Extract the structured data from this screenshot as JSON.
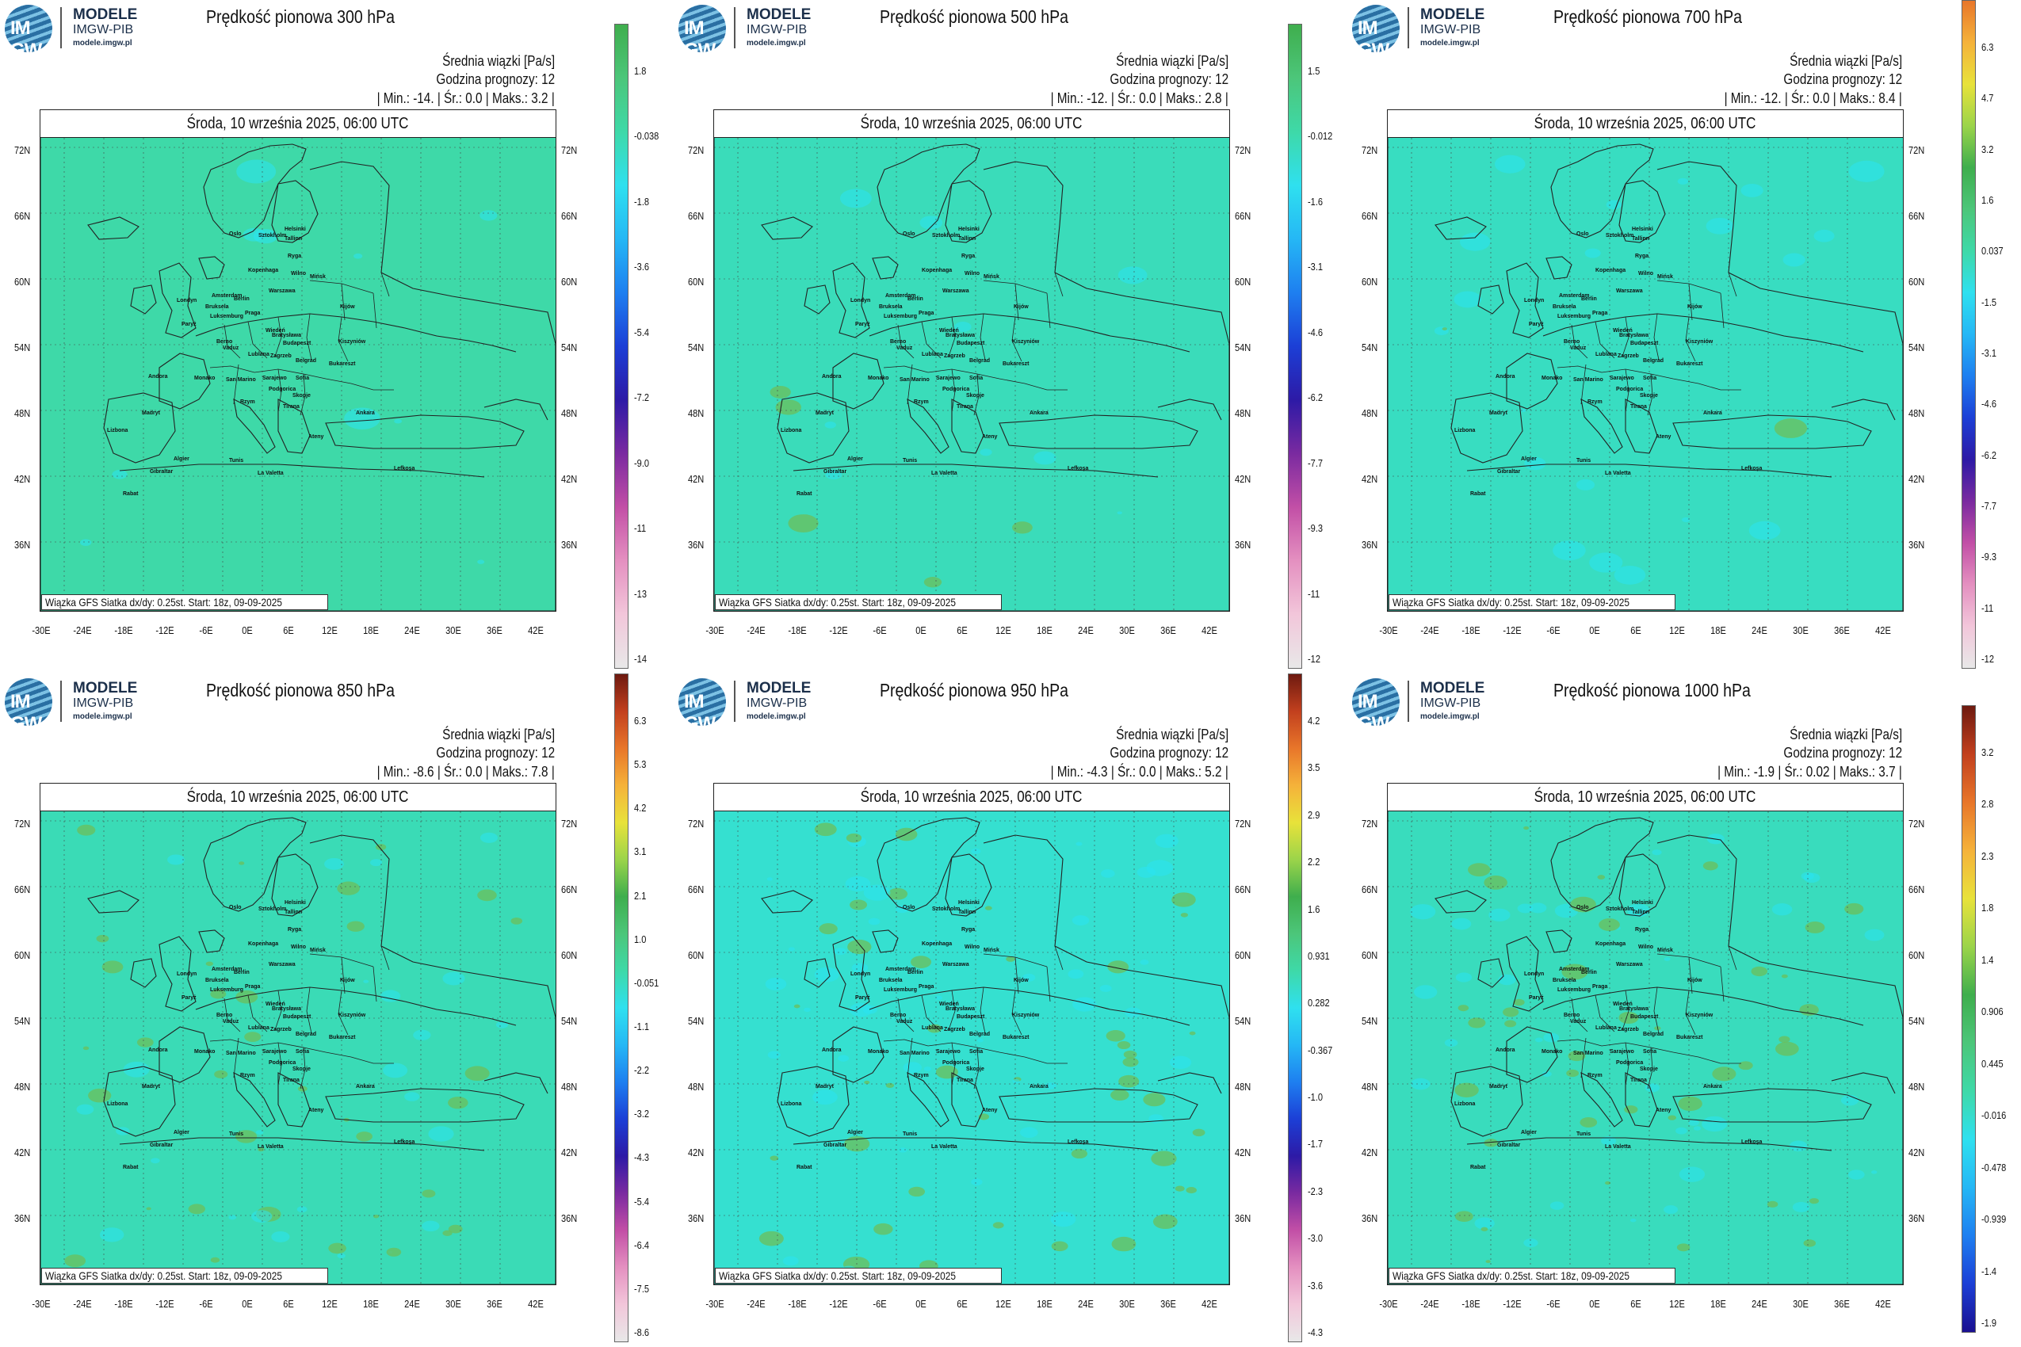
{
  "logo": {
    "badge": "IM GW",
    "line1": "MODELE",
    "line2": "IMGW-PIB",
    "line3": "modele.imgw.pl"
  },
  "colors": {
    "field_base": "#3ed9a8",
    "water_anomaly": "#2ee6f0",
    "updraft_green": "#5cb85c",
    "downdraft_blue": "#00bfff",
    "border": "#222222"
  },
  "panels": [
    {
      "title": "Prędkość pionowa 300 hPa",
      "info1": "Średnia wiązki [Pa/s]",
      "info2": "Godzina prognozy: 12",
      "stats": "| Min.:   -14. | Śr.:    0.0 | Maks.:    3.2 |",
      "date": "Środa, 10 września 2025, 06:00 UTC",
      "footer": "Wiązka GFS Siatka dx/dy: 0.25st. Start: 18z, 09-09-2025",
      "scale": [
        "1.8",
        "-0.038",
        "-1.8",
        "-3.6",
        "-5.4",
        "-7.2",
        "-9.0",
        "-11",
        "-13",
        "-14"
      ],
      "cbar_type": "A"
    },
    {
      "title": "Prędkość pionowa 500 hPa",
      "info1": "Średnia wiązki [Pa/s]",
      "info2": "Godzina prognozy: 12",
      "stats": "| Min.:   -12. | Śr.:    0.0 | Maks.:    2.8 |",
      "date": "Środa, 10 września 2025, 06:00 UTC",
      "footer": "Wiązka GFS Siatka dx/dy: 0.25st. Start: 18z, 09-09-2025",
      "scale": [
        "1.5",
        "-0.012",
        "-1.6",
        "-3.1",
        "-4.6",
        "-6.2",
        "-7.7",
        "-9.3",
        "-11",
        "-12"
      ],
      "cbar_type": "A"
    },
    {
      "title": "Prędkość pionowa 700 hPa",
      "info1": "Średnia wiązki [Pa/s]",
      "info2": "Godzina prognozy: 12",
      "stats": "| Min.:   -12. | Śr.:    0.0 | Maks.:    8.4 |",
      "date": "Środa, 10 września 2025, 06:00 UTC",
      "footer": "Wiązka GFS Siatka dx/dy: 0.25st. Start: 18z, 09-09-2025",
      "scale": [
        "6.3",
        "4.7",
        "3.2",
        "1.6",
        "0.037",
        "-1.5",
        "-3.1",
        "-4.6",
        "-6.2",
        "-7.7",
        "-9.3",
        "-11",
        "-12"
      ],
      "cbar_type": "B"
    },
    {
      "title": "Prędkość pionowa 850 hPa",
      "info1": "Średnia wiązki [Pa/s]",
      "info2": "Godzina prognozy: 12",
      "stats": "| Min.:   -8.6 | Śr.:    0.0 | Maks.:    7.8 |",
      "date": "Środa, 10 września 2025, 06:00 UTC",
      "footer": "Wiązka GFS Siatka dx/dy: 0.25st. Start: 18z, 09-09-2025",
      "scale": [
        "6.3",
        "5.3",
        "4.2",
        "3.1",
        "2.1",
        "1.0",
        "-0.051",
        "-1.1",
        "-2.2",
        "-3.2",
        "-4.3",
        "-5.4",
        "-6.4",
        "-7.5",
        "-8.6"
      ],
      "cbar_type": "C"
    },
    {
      "title": "Prędkość pionowa 950 hPa",
      "info1": "Średnia wiązki [Pa/s]",
      "info2": "Godzina prognozy: 12",
      "stats": "| Min.:   -4.3 | Śr.:    0.0 | Maks.:    5.2 |",
      "date": "Środa, 10 września 2025, 06:00 UTC",
      "footer": "Wiązka GFS Siatka dx/dy: 0.25st. Start: 18z, 09-09-2025",
      "scale": [
        "4.2",
        "3.5",
        "2.9",
        "2.2",
        "1.6",
        "0.931",
        "0.282",
        "-0.367",
        "-1.0",
        "-1.7",
        "-2.3",
        "-3.0",
        "-3.6",
        "-4.3"
      ],
      "cbar_type": "C"
    },
    {
      "title": "Prędkość pionowa 1000 hPa",
      "info1": "Średnia wiązki [Pa/s]",
      "info2": "Godzina prognozy: 12",
      "stats": "| Min.:   -1.9 | Śr.:   0.02 | Maks.:    3.7 |",
      "date": "Środa, 10 września 2025, 06:00 UTC",
      "footer": "Wiązka GFS Siatka dx/dy: 0.25st. Start: 18z, 09-09-2025",
      "scale": [
        "3.2",
        "2.8",
        "2.3",
        "1.8",
        "1.4",
        "0.906",
        "0.445",
        "-0.016",
        "-0.478",
        "-0.939",
        "-1.4",
        "-1.9"
      ],
      "cbar_type": "D"
    }
  ],
  "axes": {
    "lat_labels_left": [
      "72N",
      "66N",
      "60N",
      "54N",
      "48N",
      "42N",
      "36N"
    ],
    "lat_labels_right": [
      "72N",
      "66N",
      "60N",
      "54N",
      "48N",
      "42N",
      "36N"
    ],
    "lon_labels": [
      "-30E",
      "-24E",
      "-18E",
      "-12E",
      "-6E",
      "0E",
      "6E",
      "12E",
      "18E",
      "24E",
      "30E",
      "36E",
      "42E"
    ]
  },
  "cities": [
    "Helsinki",
    "Oslo",
    "Sztokholm",
    "Tallinn",
    "Ryga",
    "Kopenhaga",
    "Wilno",
    "Mińsk",
    "Amsterdam",
    "Berlin",
    "Warszawa",
    "Londyn",
    "Bruksela",
    "Luksemburg",
    "Praga",
    "Kijów",
    "Paryż",
    "Wiedeń",
    "Bratysława",
    "Berno",
    "Budapeszt",
    "Kiszyniów",
    "Vaduz",
    "Lublana",
    "Zagrzeb",
    "Belgrad",
    "Bukareszt",
    "Andora",
    "Monako",
    "San Marino",
    "Sarajewo",
    "Sofia",
    "Podgorica",
    "Skopje",
    "Rzym",
    "Tirana",
    "Madryt",
    "Ankara",
    "Lizbona",
    "Ateny",
    "Algier",
    "Tunis",
    "Gibraltar",
    "La Valetta",
    "Rabat",
    "Lefkoşa"
  ]
}
